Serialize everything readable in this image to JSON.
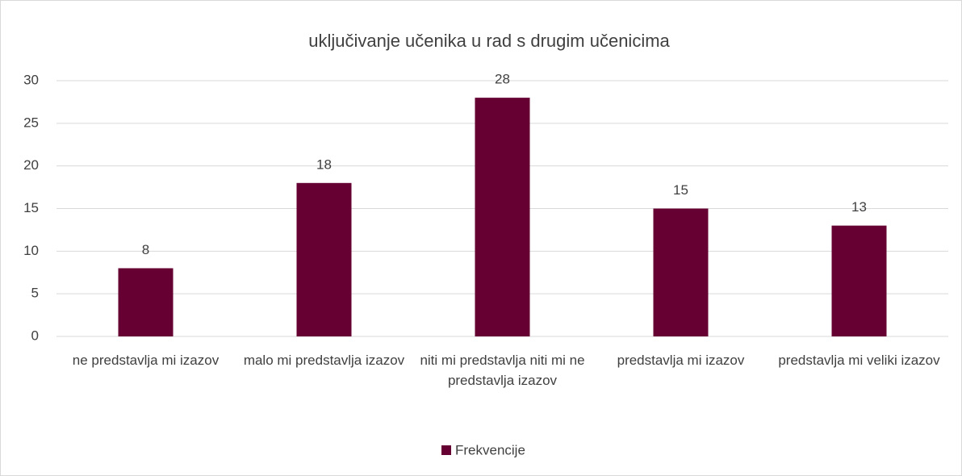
{
  "chart_data": {
    "type": "bar",
    "title": "uključivanje učenika u rad s drugim učenicima",
    "categories": [
      "ne predstavlja mi izazov",
      "malo mi predstavlja izazov",
      "niti mi predstavlja niti mi ne predstavlja izazov",
      "predstavlja mi izazov",
      "predstavlja mi veliki izazov"
    ],
    "series": [
      {
        "name": "Frekvencije",
        "color": "#660033",
        "values": [
          8,
          18,
          28,
          15,
          13
        ]
      }
    ],
    "ylim": [
      0,
      30
    ],
    "yticks": [
      0,
      5,
      10,
      15,
      20,
      25,
      30
    ],
    "grid": true,
    "legend": "bottom",
    "data_labels": true
  }
}
